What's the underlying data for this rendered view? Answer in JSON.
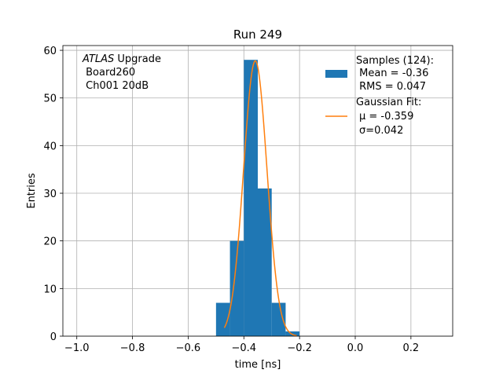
{
  "chart_data": {
    "type": "bar",
    "title": "Run 249",
    "xlabel": "time [ns]",
    "ylabel": "Entries",
    "xlim": [
      -1.05,
      0.35
    ],
    "ylim": [
      0,
      61
    ],
    "xticks": [
      -1.0,
      -0.8,
      -0.6,
      -0.4,
      -0.2,
      0.0,
      0.2
    ],
    "xtick_labels": [
      "−1.0",
      "−0.8",
      "−0.6",
      "−0.4",
      "−0.2",
      "0.0",
      "0.2"
    ],
    "yticks": [
      0,
      10,
      20,
      30,
      40,
      50,
      60
    ],
    "ytick_labels": [
      "0",
      "10",
      "20",
      "30",
      "40",
      "50",
      "60"
    ],
    "grid": true,
    "legend_position": "top-right",
    "histogram": {
      "name": "Samples (124):",
      "color": "#1f77b4",
      "bin_edges": [
        -0.5,
        -0.45,
        -0.4,
        -0.35,
        -0.3,
        -0.25,
        -0.2,
        -0.15
      ],
      "counts": [
        7,
        20,
        58,
        31,
        7,
        1,
        0
      ]
    },
    "fit": {
      "name": "Gaussian Fit:",
      "color": "#ff7f0e",
      "function": "gaussian",
      "mu": -0.359,
      "sigma": 0.042,
      "amplitude": 57.8,
      "x_range": [
        -0.47,
        -0.21
      ]
    },
    "legend": {
      "samples_label": "Samples (124):",
      "mean_label": " Mean = -0.36",
      "rms_label": " RMS = 0.047",
      "fit_label": "Gaussian Fit:",
      "mu_label": "μ = -0.359",
      "sigma_label": "σ=0.042"
    },
    "annotation": {
      "experiment": "ATLAS",
      "suffix": " Upgrade",
      "board": " Board260",
      "channel": " Ch001 20dB"
    }
  }
}
